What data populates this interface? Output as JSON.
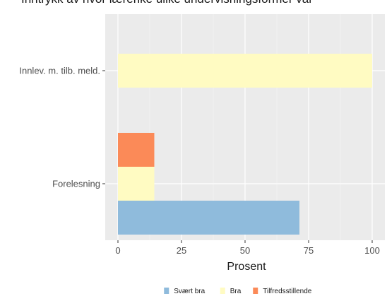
{
  "title": "Inntrykk av hvor lærerike ulike undervisningsformer var",
  "chart_data": {
    "type": "bar",
    "orientation": "horizontal",
    "categories": [
      "Innlev. m. tilb. meld.",
      "Forelesning"
    ],
    "series": [
      {
        "name": "Svært bra",
        "values": [
          0,
          71.4
        ],
        "color": "#8fbbdc"
      },
      {
        "name": "Bra",
        "values": [
          100,
          14.3
        ],
        "color": "#fffbc2"
      },
      {
        "name": "Tilfredsstillende",
        "values": [
          0,
          14.3
        ],
        "color": "#fb8a58"
      }
    ],
    "xlabel": "Prosent",
    "ylabel": "",
    "xlim": [
      -5,
      105
    ],
    "xticks": [
      0,
      25,
      50,
      75,
      100
    ],
    "grid": true,
    "legend_position": "bottom"
  }
}
